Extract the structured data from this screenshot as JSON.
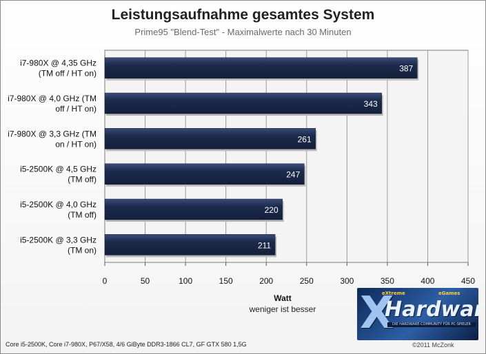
{
  "chart_data": {
    "type": "bar",
    "orientation": "horizontal",
    "title": "Leistungsaufnahme gesamtes System",
    "subtitle": "Prime95 \"Blend-Test\" - Maximalwerte nach 30 Minuten",
    "xlabel": "Watt",
    "xlabel_note": "weniger ist besser",
    "xlim": [
      0,
      450
    ],
    "xticks": [
      0,
      50,
      100,
      150,
      200,
      250,
      300,
      350,
      400,
      450
    ],
    "grid": true,
    "categories": [
      [
        "i7-980X @ 4,35 GHz",
        "(TM off / HT on)"
      ],
      [
        "i7-980X @ 4,0 GHz (TM",
        "off / HT on)"
      ],
      [
        "i7-980X @ 3,3 GHz (TM",
        "on / HT on)"
      ],
      [
        "i5-2500K @ 4,5 GHz",
        "(TM off)"
      ],
      [
        "i5-2500K @ 4,0 GHz",
        "(TM off)"
      ],
      [
        "i5-2500K @ 3,3 GHz",
        "(TM on)"
      ]
    ],
    "values": [
      387,
      343,
      261,
      247,
      220,
      211
    ],
    "bar_color": "#1c2b4d"
  },
  "footer": "Core i5-2500K, Core i7-980X, P67/X58, 4/6 GiByte DDR3-1866 CL7, GF GTX 580 1,5G",
  "copyright": "©2011 McZonk",
  "logo": {
    "word": "Hardware",
    "top_left": "eXtreme",
    "top_right": "eGames",
    "tagline": "DIE HARDWARE-COMMUNITY FÜR PC-SPIELER"
  }
}
